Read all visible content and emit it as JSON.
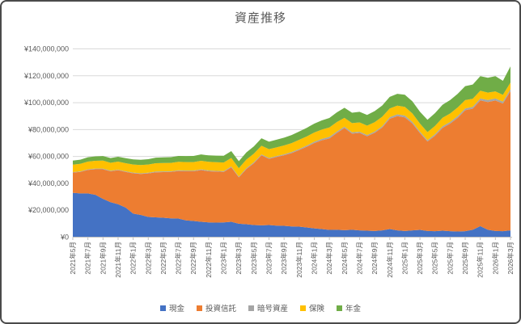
{
  "chart_data": {
    "type": "area",
    "stacked": true,
    "title": "資産推移",
    "currency_prefix": "¥",
    "ylim": [
      0,
      140000000
    ],
    "y_tick_step": 20000000,
    "y_tick_labels": [
      "¥0",
      "¥20,000,000",
      "¥40,000,000",
      "¥60,000,000",
      "¥80,000,000",
      "¥100,000,000",
      "¥120,000,000",
      "¥140,000,000"
    ],
    "grid": true,
    "legend_position": "bottom",
    "x": [
      "2021年5月",
      "2021年6月",
      "2021年7月",
      "2021年8月",
      "2021年9月",
      "2021年10月",
      "2021年11月",
      "2021年12月",
      "2022年1月",
      "2022年2月",
      "2022年3月",
      "2022年4月",
      "2022年5月",
      "2022年6月",
      "2022年7月",
      "2022年8月",
      "2022年9月",
      "2022年10月",
      "2022年11月",
      "2022年12月",
      "2023年1月",
      "2023年2月",
      "2023年3月",
      "2023年4月",
      "2023年5月",
      "2023年6月",
      "2023年7月",
      "2023年8月",
      "2023年9月",
      "2023年10月",
      "2023年11月",
      "2023年12月",
      "2024年1月",
      "2024年2月",
      "2024年3月",
      "2024年4月",
      "2024年5月",
      "2024年6月",
      "2024年7月",
      "2024年8月",
      "2024年9月",
      "2024年10月",
      "2024年11月",
      "2024年12月",
      "2025年1月",
      "2025年2月",
      "2025年3月",
      "2025年4月",
      "2025年5月",
      "2025年6月",
      "2025年7月",
      "2025年8月",
      "2025年9月",
      "2025年10月",
      "2025年11月",
      "2025年12月",
      "2026年1月",
      "2026年2月",
      "2026年3月"
    ],
    "x_tick_labels": [
      "2021年5月",
      "2021年7月",
      "2021年9月",
      "2021年11月",
      "2022年1月",
      "2022年3月",
      "2022年5月",
      "2022年7月",
      "2022年9月",
      "2022年11月",
      "2023年1月",
      "2023年3月",
      "2023年5月",
      "2023年7月",
      "2023年9月",
      "2023年11月",
      "2024年1月",
      "2024年3月",
      "2024年5月",
      "2024年7月",
      "2024年9月",
      "2024年11月",
      "2025年1月",
      "2025年3月",
      "2025年5月",
      "2025年7月",
      "2025年9月",
      "2025年11月",
      "2026年1月",
      "2026年3月"
    ],
    "x_tick_interval": 2,
    "series": [
      {
        "name": "現金",
        "color": "#4472C4",
        "values": [
          33000000,
          32500000,
          32500000,
          31500000,
          28500000,
          26000000,
          24500000,
          22000000,
          17500000,
          16500000,
          15000000,
          14700000,
          14400000,
          14000000,
          13800000,
          12500000,
          12000000,
          11400000,
          11000000,
          10800000,
          11000000,
          11400000,
          10000000,
          9600000,
          9000000,
          8800000,
          9000000,
          8600000,
          8400000,
          8000000,
          7800000,
          7200000,
          6500000,
          6000000,
          5400000,
          5500000,
          5200000,
          5500000,
          5000000,
          4800000,
          4600000,
          5000000,
          6000000,
          5000000,
          4600000,
          5000000,
          5400000,
          4600000,
          4400000,
          4800000,
          4400000,
          4200000,
          4400000,
          5500000,
          8200000,
          5500000,
          4600000,
          4400000,
          5000000
        ]
      },
      {
        "name": "投資信託",
        "color": "#ED7D31",
        "values": [
          15000000,
          16000000,
          17500000,
          19000000,
          22000000,
          23000000,
          25300000,
          26500000,
          30000000,
          30500000,
          32400000,
          33500000,
          34000000,
          34500000,
          35400000,
          36500000,
          37000000,
          38500000,
          38000000,
          38000000,
          37500000,
          40500000,
          34500000,
          41000000,
          46000000,
          52000000,
          49200000,
          51000000,
          52500000,
          54500000,
          57000000,
          60000000,
          63500000,
          66000000,
          68000000,
          72000000,
          76000000,
          71500000,
          72500000,
          70200000,
          73000000,
          76500000,
          82000000,
          85000000,
          84500000,
          79500000,
          72000000,
          66500000,
          71000000,
          76500000,
          80000000,
          84500000,
          90000000,
          90000000,
          93500000,
          95000000,
          97000000,
          95000000,
          103500000
        ]
      },
      {
        "name": "暗号資産",
        "color": "#A5A5A5",
        "values": [
          400000,
          400000,
          500000,
          500000,
          500000,
          400000,
          400000,
          500000,
          500000,
          500000,
          500000,
          600000,
          500000,
          500000,
          500000,
          500000,
          500000,
          500000,
          600000,
          500000,
          600000,
          700000,
          600000,
          700000,
          700000,
          700000,
          700000,
          700000,
          700000,
          800000,
          800000,
          900000,
          1000000,
          1100000,
          1200000,
          1100000,
          1000000,
          1000000,
          900000,
          900000,
          900000,
          1000000,
          1200000,
          1300000,
          1300000,
          1200000,
          1100000,
          1000000,
          1100000,
          1200000,
          1200000,
          1300000,
          1300000,
          1400000,
          1400000,
          1500000,
          1500000,
          1400000,
          1500000
        ]
      },
      {
        "name": "保険",
        "color": "#FFC000",
        "values": [
          5500000,
          5600000,
          5700000,
          5800000,
          5900000,
          5900000,
          6000000,
          6000000,
          6000000,
          6100000,
          6100000,
          6200000,
          6200000,
          6200000,
          6300000,
          6300000,
          6300000,
          6400000,
          6400000,
          6400000,
          6400000,
          6300000,
          6200000,
          6400000,
          6400000,
          6500000,
          6500000,
          6500000,
          6600000,
          6600000,
          6800000,
          6800000,
          6800000,
          6900000,
          7000000,
          7000000,
          6500000,
          6800000,
          6900000,
          7000000,
          7000000,
          7000000,
          6500000,
          6500000,
          6500000,
          6300000,
          6000000,
          6000000,
          6200000,
          6300000,
          6300000,
          6400000,
          6200000,
          6000000,
          5800000,
          5500000,
          5300000,
          5000000,
          5000000
        ]
      },
      {
        "name": "年金",
        "color": "#70AD47",
        "values": [
          3000000,
          3100000,
          3200000,
          3300000,
          3400000,
          3500000,
          3600000,
          3700000,
          3800000,
          3900000,
          4000000,
          4100000,
          4200000,
          4300000,
          4400000,
          4500000,
          4600000,
          4700000,
          4800000,
          4900000,
          5000000,
          5100000,
          5200000,
          5300000,
          5400000,
          5500000,
          5600000,
          5700000,
          5800000,
          6000000,
          6200000,
          6400000,
          6600000,
          6800000,
          7000000,
          7200000,
          7500000,
          7700000,
          7900000,
          8000000,
          8200000,
          8400000,
          8600000,
          8800000,
          9000000,
          9000000,
          8800000,
          9200000,
          9500000,
          9700000,
          10000000,
          10200000,
          10400000,
          10600000,
          10800000,
          11000000,
          11300000,
          10500000,
          12000000
        ]
      }
    ],
    "colors": {
      "text": "#595959",
      "gridline": "#D9D9D9",
      "axis": "#BFBFBF"
    }
  }
}
